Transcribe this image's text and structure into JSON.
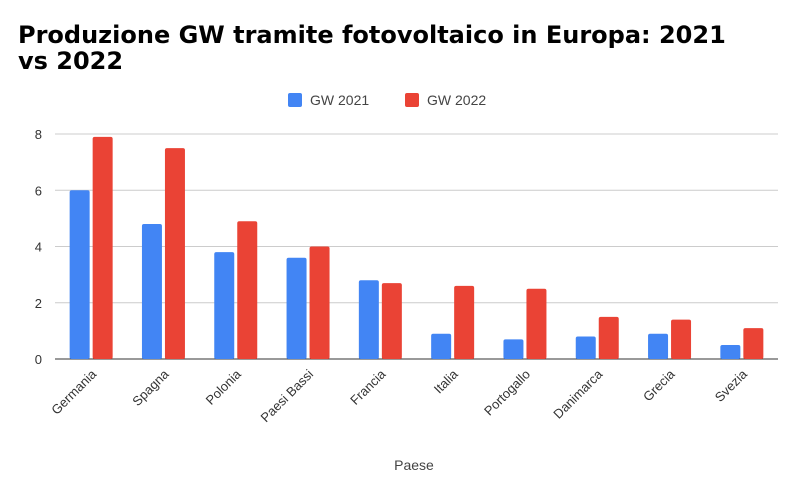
{
  "chart_data": {
    "type": "bar",
    "title": "Produzione GW tramite fotovoltaico in Europa: 2021 vs 2022",
    "xlabel": "Paese",
    "ylabel": "",
    "ylim": [
      0,
      8
    ],
    "yticks": [
      0,
      2,
      4,
      6,
      8
    ],
    "grid": true,
    "legend_position": "top",
    "categories": [
      "Germania",
      "Spagna",
      "Polonia",
      "Paesi Bassi",
      "Francia",
      "Italia",
      "Portogallo",
      "Danimarca",
      "Grecia",
      "Svezia"
    ],
    "series": [
      {
        "name": "GW 2021",
        "color": "#4285f4",
        "values": [
          6.0,
          4.8,
          3.8,
          3.6,
          2.8,
          0.9,
          0.7,
          0.8,
          0.9,
          0.5
        ]
      },
      {
        "name": "GW 2022",
        "color": "#ea4335",
        "values": [
          7.9,
          7.5,
          4.9,
          4.0,
          2.7,
          2.6,
          2.5,
          1.5,
          1.4,
          1.1
        ]
      }
    ]
  }
}
